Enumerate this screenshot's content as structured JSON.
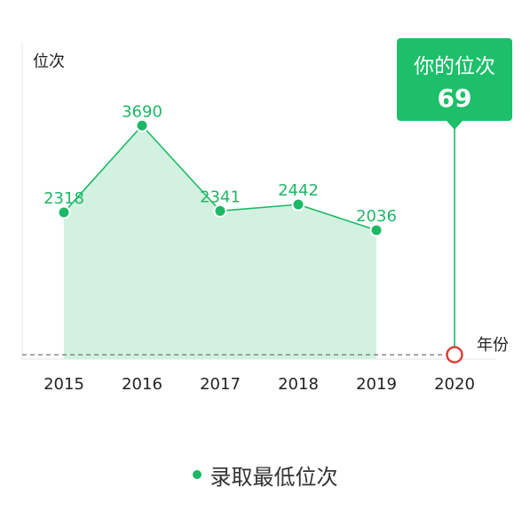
{
  "chart_data": {
    "type": "line",
    "xlabel": "年份",
    "ylabel": "位次",
    "categories": [
      "2015",
      "2016",
      "2017",
      "2018",
      "2019",
      "2020"
    ],
    "series": [
      {
        "name": "录取最低位次",
        "values": [
          2318,
          3690,
          2341,
          2442,
          2036,
          null
        ]
      }
    ],
    "area_fill": true,
    "ylim": [
      0,
      5000
    ],
    "marker": {
      "category": "2020",
      "title": "你的位次",
      "value": 69
    },
    "reference_line": {
      "style": "dashed",
      "at_category": "2020"
    },
    "legend": {
      "position": "bottom"
    },
    "grid": false
  },
  "colors": {
    "line": "#1cb866",
    "area": "#d2f1e0",
    "bubble": "#1dbf6a",
    "marker_ring": "#d9413b",
    "axis": "#e6e6e6",
    "dash": "#555555"
  }
}
